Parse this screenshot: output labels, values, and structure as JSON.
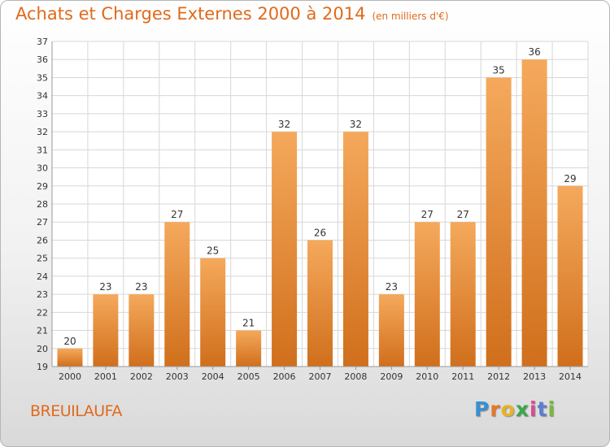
{
  "title": "Achats et Charges Externes 2000 à 2014",
  "subtitle": "(en milliers d'€)",
  "commune": "BREUILAUFA",
  "logo": {
    "letters": [
      "P",
      "r",
      "o",
      "x",
      "i",
      "t",
      "i"
    ],
    "colors": [
      "#3a8fd0",
      "#e8762a",
      "#e8b22a",
      "#3aa84b",
      "#d84a8f",
      "#5b7fd0",
      "#7ab83a"
    ]
  },
  "colors": {
    "bar_light": "#f5a95c",
    "bar_dark": "#d06f1c",
    "title": "#e06a1c",
    "grid": "#d7d7d7"
  },
  "chart_data": {
    "type": "bar",
    "categories": [
      "2000",
      "2001",
      "2002",
      "2003",
      "2004",
      "2005",
      "2006",
      "2007",
      "2008",
      "2009",
      "2010",
      "2011",
      "2012",
      "2013",
      "2014"
    ],
    "values": [
      20,
      23,
      23,
      27,
      25,
      21,
      32,
      26,
      32,
      23,
      27,
      27,
      35,
      36,
      29
    ],
    "yticks": [
      19,
      20,
      21,
      22,
      23,
      24,
      25,
      26,
      27,
      28,
      29,
      30,
      31,
      32,
      33,
      34,
      35,
      36,
      37
    ],
    "ylim": [
      19,
      37
    ],
    "grid": true
  }
}
